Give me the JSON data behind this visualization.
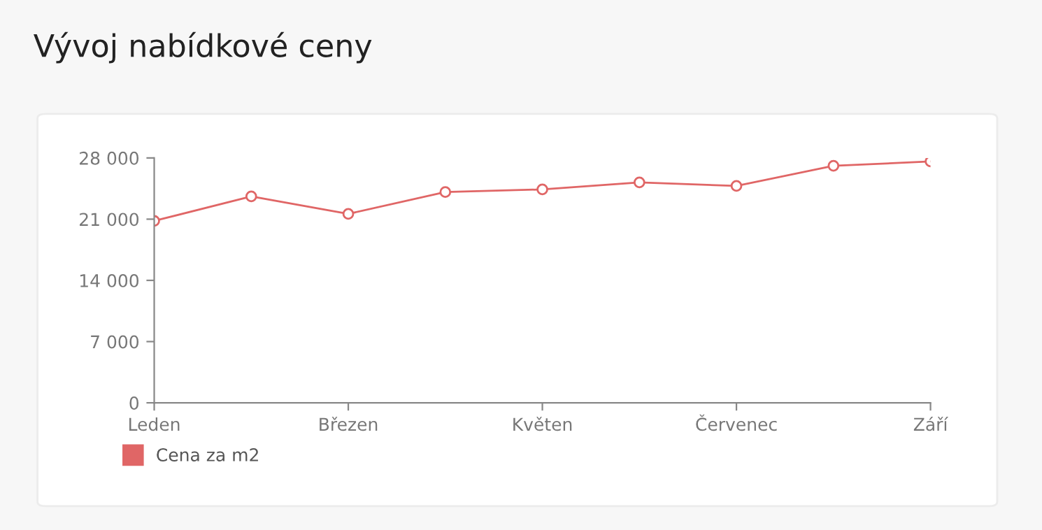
{
  "chart_data": {
    "type": "line",
    "title": "Vývoj nabídkové ceny",
    "categories": [
      "Leden",
      null,
      "Březen",
      null,
      "Květen",
      null,
      "Červenec",
      null,
      "Září"
    ],
    "series": [
      {
        "name": "Cena za m2",
        "color": "#e06666",
        "values": [
          20800,
          23600,
          21600,
          24100,
          24400,
          25200,
          24800,
          27100,
          27600
        ]
      }
    ],
    "ylim": [
      0,
      28000
    ],
    "yticks": [
      {
        "value": 0,
        "label": "0"
      },
      {
        "value": 7000,
        "label": "7 000"
      },
      {
        "value": 14000,
        "label": "14 000"
      },
      {
        "value": 21000,
        "label": "21 000"
      },
      {
        "value": 28000,
        "label": "28 000"
      }
    ],
    "marker": "circle",
    "line_style": "solid",
    "grid": false,
    "legend": "bottom left"
  }
}
